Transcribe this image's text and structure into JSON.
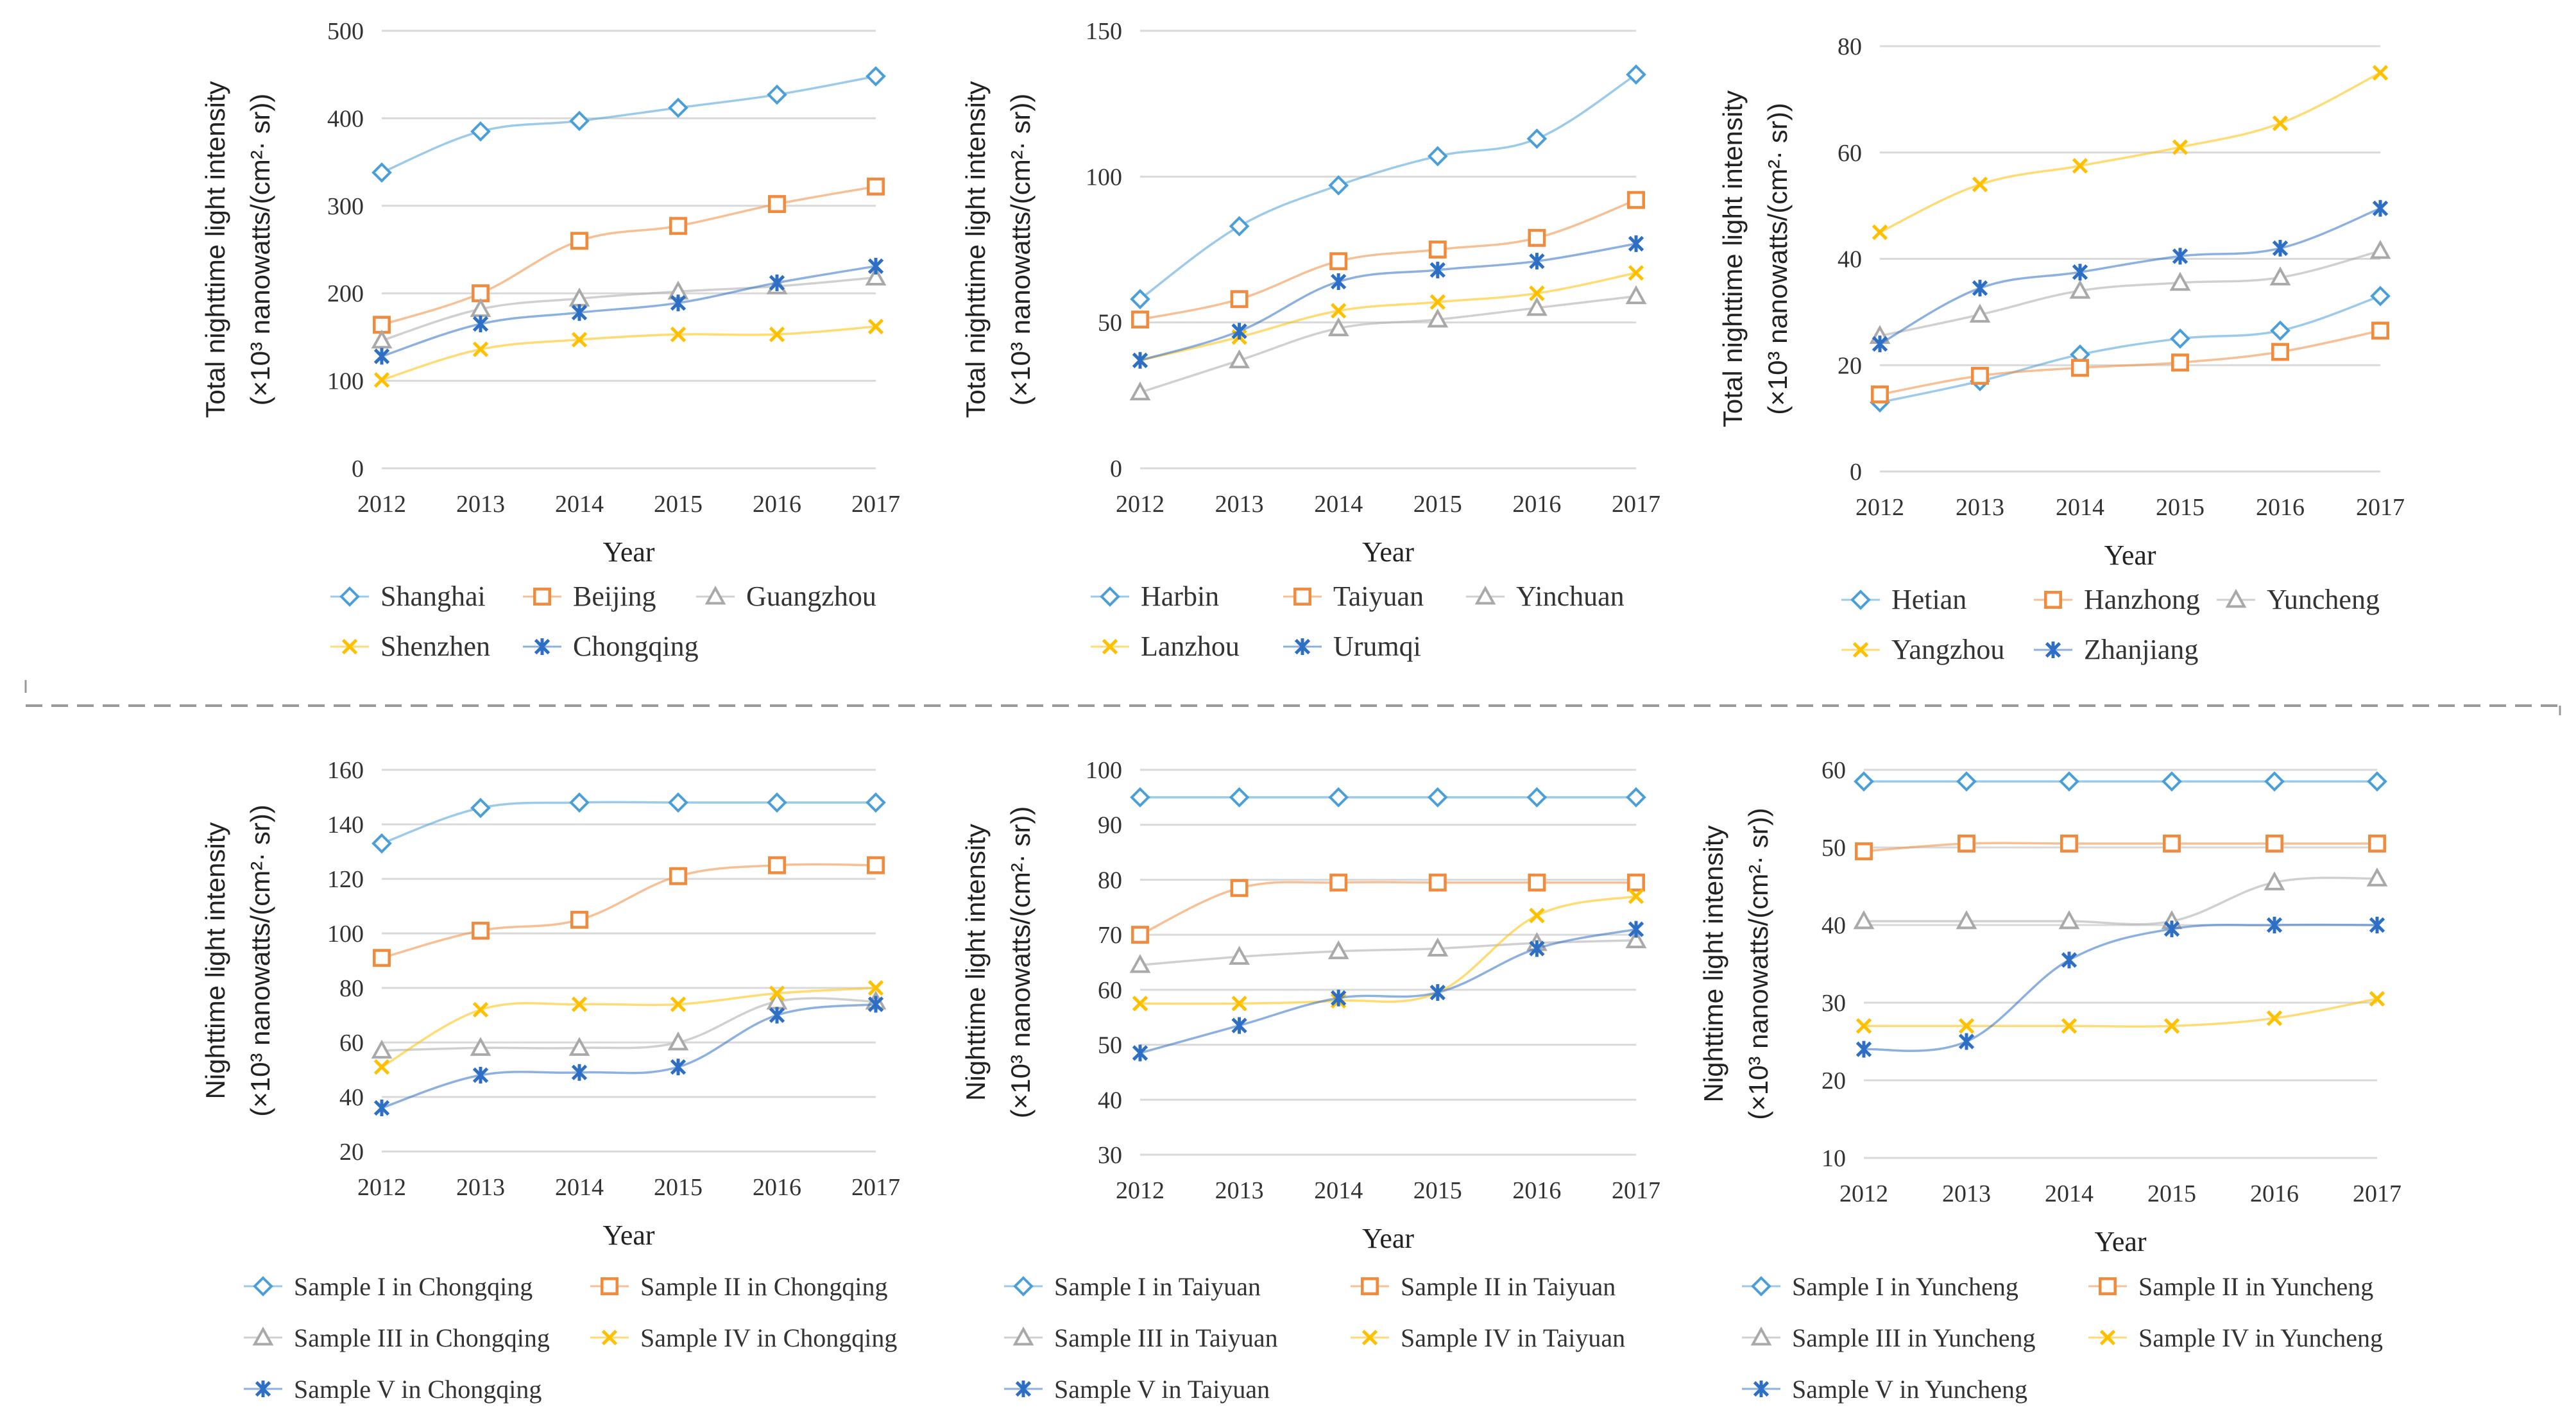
{
  "colors": {
    "blue_light": "#4a9fd8",
    "orange": "#f08a3c",
    "gray": "#a9a9a9",
    "yellow": "#ffc000",
    "blue_dark": "#2e6fc6",
    "grid": "#d9d9d9",
    "axis_text": "#333333",
    "separator": "#999999"
  },
  "chart_data": [
    {
      "type": "line",
      "xlabel": "Year",
      "ylabel": "Total nighttime light intensity",
      "ylabel_unit": "(×10³ nanowatts/(cm²· sr))",
      "x": [
        "2012",
        "2013",
        "2014",
        "2015",
        "2016",
        "2017"
      ],
      "ylim": [
        0,
        500
      ],
      "yticks": [
        "0",
        "100",
        "200",
        "300",
        "400",
        "500"
      ],
      "legend_cols": 3,
      "series": [
        {
          "name": "Shanghai",
          "marker": "diamond",
          "color": "#4a9fd8",
          "values": [
            338,
            385,
            397,
            412,
            427,
            448
          ]
        },
        {
          "name": "Beijing",
          "marker": "square",
          "color": "#f08a3c",
          "values": [
            164,
            200,
            260,
            277,
            302,
            322
          ]
        },
        {
          "name": "Guangzhou",
          "marker": "triangle",
          "color": "#a9a9a9",
          "values": [
            146,
            182,
            194,
            202,
            208,
            218
          ]
        },
        {
          "name": "Shenzhen",
          "marker": "x",
          "color": "#ffc000",
          "values": [
            101,
            136,
            147,
            153,
            153,
            162
          ]
        },
        {
          "name": "Chongqing",
          "marker": "star",
          "color": "#2e6fc6",
          "values": [
            128,
            165,
            178,
            189,
            212,
            231
          ]
        }
      ]
    },
    {
      "type": "line",
      "xlabel": "Year",
      "ylabel": "Total nighttime light intensity",
      "ylabel_unit": "(×10³ nanowatts/(cm²· sr))",
      "x": [
        "2012",
        "2013",
        "2014",
        "2015",
        "2016",
        "2017"
      ],
      "ylim": [
        0,
        150
      ],
      "yticks": [
        "0",
        "50",
        "100",
        "150"
      ],
      "legend_cols": 3,
      "series": [
        {
          "name": "Harbin",
          "marker": "diamond",
          "color": "#4a9fd8",
          "values": [
            58,
            83,
            97,
            107,
            113,
            135
          ]
        },
        {
          "name": "Taiyuan",
          "marker": "square",
          "color": "#f08a3c",
          "values": [
            51,
            58,
            71,
            75,
            79,
            92
          ]
        },
        {
          "name": "Yinchuan",
          "marker": "triangle",
          "color": "#a9a9a9",
          "values": [
            26,
            37,
            48,
            51,
            55,
            59
          ]
        },
        {
          "name": "Lanzhou",
          "marker": "x",
          "color": "#ffc000",
          "values": [
            37,
            45,
            54,
            57,
            60,
            67
          ]
        },
        {
          "name": "Urumqi",
          "marker": "star",
          "color": "#2e6fc6",
          "values": [
            37,
            47,
            64,
            68,
            71,
            77
          ]
        }
      ]
    },
    {
      "type": "line",
      "xlabel": "Year",
      "ylabel": "Total nighttime light intensity",
      "ylabel_unit": "(×10³ nanowatts/(cm²· sr))",
      "x": [
        "2012",
        "2013",
        "2014",
        "2015",
        "2016",
        "2017"
      ],
      "ylim": [
        0,
        80
      ],
      "yticks": [
        "0",
        "20",
        "40",
        "60",
        "80"
      ],
      "legend_cols": 3,
      "series": [
        {
          "name": "Hetian",
          "marker": "diamond",
          "color": "#4a9fd8",
          "values": [
            13,
            17,
            22,
            25,
            26.5,
            33
          ]
        },
        {
          "name": "Hanzhong",
          "marker": "square",
          "color": "#f08a3c",
          "values": [
            14.5,
            18,
            19.5,
            20.5,
            22.5,
            26.5
          ]
        },
        {
          "name": "Yuncheng",
          "marker": "triangle",
          "color": "#a9a9a9",
          "values": [
            25.5,
            29.5,
            34,
            35.5,
            36.5,
            41.5
          ]
        },
        {
          "name": "Yangzhou",
          "marker": "x",
          "color": "#ffc000",
          "values": [
            45,
            54,
            57.5,
            61,
            65.5,
            75
          ]
        },
        {
          "name": "Zhanjiang",
          "marker": "star",
          "color": "#2e6fc6",
          "values": [
            24,
            34.5,
            37.5,
            40.5,
            42,
            49.5
          ]
        }
      ]
    },
    {
      "type": "line",
      "xlabel": "Year",
      "ylabel": "Nighttime light intensity",
      "ylabel_unit": "(×10³ nanowatts/(cm²· sr))",
      "x": [
        "2012",
        "2013",
        "2014",
        "2015",
        "2016",
        "2017"
      ],
      "ylim": [
        20,
        160
      ],
      "yticks": [
        "20",
        "40",
        "60",
        "80",
        "100",
        "120",
        "140",
        "160"
      ],
      "legend_cols": 2,
      "series": [
        {
          "name": "Sample I in Chongqing",
          "marker": "diamond",
          "color": "#4a9fd8",
          "values": [
            133,
            146,
            148,
            148,
            148,
            148
          ]
        },
        {
          "name": "Sample II in Chongqing",
          "marker": "square",
          "color": "#f08a3c",
          "values": [
            91,
            101,
            105,
            121,
            125,
            125
          ]
        },
        {
          "name": "Sample III in Chongqing",
          "marker": "triangle",
          "color": "#a9a9a9",
          "values": [
            57,
            58,
            58,
            60,
            75,
            75
          ]
        },
        {
          "name": "Sample IV in Chongqing",
          "marker": "x",
          "color": "#ffc000",
          "values": [
            51,
            72,
            74,
            74,
            78,
            80
          ]
        },
        {
          "name": "Sample V in Chongqing",
          "marker": "star",
          "color": "#2e6fc6",
          "values": [
            36,
            48,
            49,
            51,
            70,
            74
          ]
        }
      ]
    },
    {
      "type": "line",
      "xlabel": "Year",
      "ylabel": "Nighttime light intensity",
      "ylabel_unit": "(×10³ nanowatts/(cm²· sr))",
      "x": [
        "2012",
        "2013",
        "2014",
        "2015",
        "2016",
        "2017"
      ],
      "ylim": [
        30,
        100
      ],
      "yticks": [
        "30",
        "40",
        "50",
        "60",
        "70",
        "80",
        "90",
        "100"
      ],
      "legend_cols": 2,
      "series": [
        {
          "name": "Sample I in Taiyuan",
          "marker": "diamond",
          "color": "#4a9fd8",
          "values": [
            95,
            95,
            95,
            95,
            95,
            95
          ]
        },
        {
          "name": "Sample II in Taiyuan",
          "marker": "square",
          "color": "#f08a3c",
          "values": [
            70,
            78.5,
            79.5,
            79.5,
            79.5,
            79.5
          ]
        },
        {
          "name": "Sample III in Taiyuan",
          "marker": "triangle",
          "color": "#a9a9a9",
          "values": [
            64.5,
            66,
            67,
            67.5,
            68.5,
            69
          ]
        },
        {
          "name": "Sample IV in Taiyuan",
          "marker": "x",
          "color": "#ffc000",
          "values": [
            57.5,
            57.5,
            58,
            59.5,
            73.5,
            77
          ]
        },
        {
          "name": "Sample V in Taiyuan",
          "marker": "star",
          "color": "#2e6fc6",
          "values": [
            48.5,
            53.5,
            58.5,
            59.5,
            67.5,
            71
          ]
        }
      ]
    },
    {
      "type": "line",
      "xlabel": "Year",
      "ylabel": "Nighttime light intensity",
      "ylabel_unit": "(×10³ nanowatts/(cm²· sr))",
      "x": [
        "2012",
        "2013",
        "2014",
        "2015",
        "2016",
        "2017"
      ],
      "ylim": [
        10,
        60
      ],
      "yticks": [
        "10",
        "20",
        "30",
        "40",
        "50",
        "60"
      ],
      "legend_cols": 2,
      "series": [
        {
          "name": "Sample I in Yuncheng",
          "marker": "diamond",
          "color": "#4a9fd8",
          "values": [
            58.5,
            58.5,
            58.5,
            58.5,
            58.5,
            58.5
          ]
        },
        {
          "name": "Sample II in Yuncheng",
          "marker": "square",
          "color": "#f08a3c",
          "values": [
            49.5,
            50.5,
            50.5,
            50.5,
            50.5,
            50.5
          ]
        },
        {
          "name": "Sample III in Yuncheng",
          "marker": "triangle",
          "color": "#a9a9a9",
          "values": [
            40.5,
            40.5,
            40.5,
            40.5,
            45.5,
            46
          ]
        },
        {
          "name": "Sample IV in Yuncheng",
          "marker": "x",
          "color": "#ffc000",
          "values": [
            27,
            27,
            27,
            27,
            28,
            30.5
          ]
        },
        {
          "name": "Sample V in Yuncheng",
          "marker": "star",
          "color": "#2e6fc6",
          "values": [
            24,
            25,
            35.5,
            39.5,
            40,
            40
          ]
        }
      ]
    }
  ]
}
